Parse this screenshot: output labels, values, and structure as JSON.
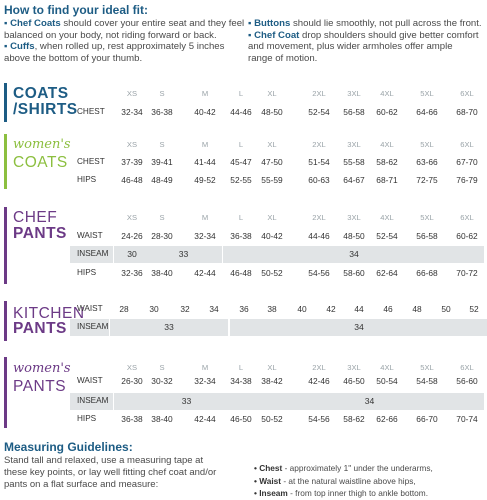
{
  "fit": {
    "title": "How to find your ideal fit:",
    "left": [
      {
        "term": "Chef Coats",
        "lines": [
          " should cover your entire seat and they feel",
          "balanced on your body, not riding forward or back."
        ]
      },
      {
        "term": "Cuffs",
        "lines": [
          ", when rolled up, rest approximately 5 inches",
          "above the bottom of your thumb."
        ]
      }
    ],
    "right": [
      {
        "term": "Buttons",
        "lines": [
          " should lie smoothly, not pull across the front."
        ]
      },
      {
        "term": "Chef Coat",
        "lines": [
          " drop shoulders should give better comfort",
          "and movement, plus wider armholes offer ample",
          "range of motion."
        ]
      }
    ]
  },
  "colors": {
    "blue": "#1d5c84",
    "green": "#8cbf3f",
    "purple": "#6c3a86",
    "shade": "#e1e4e6"
  },
  "sizes": [
    "XS",
    "S",
    "M",
    "L",
    "XL",
    "2XL",
    "3XL",
    "4XL",
    "5XL",
    "6XL"
  ],
  "sections": [
    {
      "id": "coats-shirts",
      "title_lines": [
        "COATS",
        "/SHIRTS"
      ],
      "title_style": "caps",
      "color": "#1d5c84",
      "show_sizes": false,
      "rows": [
        {
          "label": "CHEST",
          "shaded": false,
          "values": [
            "32-34",
            "36-38",
            "40-42",
            "44-46",
            "48-50",
            "52-54",
            "56-58",
            "60-62",
            "64-66",
            "68-70"
          ]
        }
      ]
    },
    {
      "id": "womens-coats",
      "title_lines": [
        "women's",
        "COATS"
      ],
      "title_style": "script",
      "color": "#8cbf3f",
      "show_sizes": true,
      "rows": [
        {
          "label": "CHEST",
          "shaded": false,
          "values": [
            "37-39",
            "39-41",
            "41-44",
            "45-47",
            "47-50",
            "51-54",
            "55-58",
            "58-62",
            "63-66",
            "67-70"
          ]
        },
        {
          "label": "HIPS",
          "shaded": false,
          "values": [
            "46-48",
            "48-49",
            "49-52",
            "52-55",
            "55-59",
            "60-63",
            "64-67",
            "68-71",
            "72-75",
            "76-79"
          ]
        }
      ]
    },
    {
      "id": "chef-pants",
      "title_lines": [
        "CHEF",
        "PANTS"
      ],
      "title_style": "caps",
      "color": "#6c3a86",
      "show_sizes": true,
      "rows": [
        {
          "label": "WAIST",
          "shaded": false,
          "values": [
            "24-26",
            "28-30",
            "32-34",
            "36-38",
            "40-42",
            "44-46",
            "48-50",
            "52-54",
            "56-58",
            "60-62"
          ]
        },
        {
          "label": "INSEAM",
          "shaded": true,
          "spans": [
            {
              "text": "30",
              "from": 0,
              "to": 0
            },
            {
              "text": "33",
              "from": 1,
              "to": 2
            },
            {
              "text": "34",
              "from": 3,
              "to": 9
            }
          ]
        },
        {
          "label": "HIPS",
          "shaded": false,
          "values": [
            "32-36",
            "38-40",
            "42-44",
            "46-48",
            "50-52",
            "54-56",
            "58-60",
            "62-64",
            "66-68",
            "70-72"
          ]
        }
      ]
    },
    {
      "id": "kitchen-pants",
      "title_lines": [
        "KITCHEN",
        "PANTS"
      ],
      "title_style": "caps",
      "color": "#6c3a86",
      "show_sizes": false,
      "rows": [
        {
          "label": "WAIST",
          "shaded": false,
          "kitchen": true,
          "values": [
            "28",
            "30",
            "32",
            "34",
            "36",
            "38",
            "40",
            "42",
            "44",
            "46",
            "48",
            "50",
            "52"
          ]
        },
        {
          "label": "INSEAM",
          "shaded": true,
          "kitchen": true,
          "spans": [
            {
              "text": "33",
              "from": 0,
              "to": 3
            },
            {
              "text": "34",
              "from": 4,
              "to": 12
            }
          ]
        }
      ]
    },
    {
      "id": "womens-pants",
      "title_lines": [
        "women's",
        "PANTS"
      ],
      "title_style": "script",
      "color": "#6c3a86",
      "show_sizes": true,
      "rows": [
        {
          "label": "WAIST",
          "shaded": false,
          "values": [
            "26-30",
            "30-32",
            "32-34",
            "34-38",
            "38-42",
            "42-46",
            "46-50",
            "50-54",
            "54-58",
            "56-60"
          ]
        },
        {
          "label": "INSEAM",
          "shaded": true,
          "spans": [
            {
              "text": "33",
              "from": 0,
              "to": 3
            },
            {
              "text": "34",
              "from": 4,
              "to": 9
            }
          ]
        },
        {
          "label": "HIPS",
          "shaded": false,
          "values": [
            "36-38",
            "38-40",
            "42-44",
            "46-50",
            "50-52",
            "54-56",
            "58-62",
            "62-66",
            "66-70",
            "70-74"
          ]
        }
      ]
    }
  ],
  "guidelines": {
    "title": "Measuring Guidelines:",
    "text": "Stand tall and relaxed, use a measuring tape at these key points, or lay well fitting chef coat and/or pants on a flat surface and measure:",
    "items": [
      {
        "term": "Chest",
        "desc": " - approximately 1\" under the underarms,"
      },
      {
        "term": "Waist",
        "desc": " - at the natural waistline above hips,"
      },
      {
        "term": "Inseam",
        "desc": " - from top inner thigh to ankle bottom."
      }
    ]
  }
}
